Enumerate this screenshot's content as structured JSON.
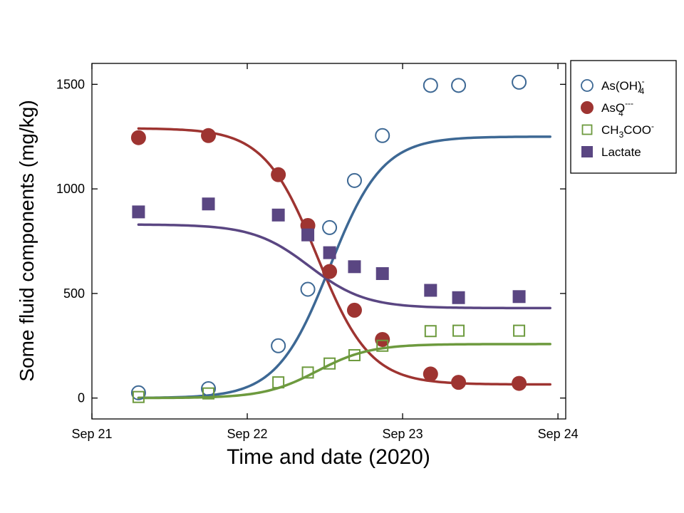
{
  "chart_data": {
    "type": "scatter",
    "title": "",
    "xlabel": "Time and date (2020)",
    "ylabel": "Some fluid components (mg/kg)",
    "xlim": [
      0,
      3.05
    ],
    "ylim": [
      -100,
      1600
    ],
    "x_ticks": [
      {
        "value": 0,
        "label": "Sep 21"
      },
      {
        "value": 1,
        "label": "Sep 22"
      },
      {
        "value": 2,
        "label": "Sep 23"
      },
      {
        "value": 3,
        "label": "Sep 24"
      }
    ],
    "y_ticks": [
      {
        "value": 0,
        "label": "0"
      },
      {
        "value": 500,
        "label": "500"
      },
      {
        "value": 1000,
        "label": "1000"
      },
      {
        "value": 1500,
        "label": "1500"
      }
    ],
    "legend_position": "outside-top-right",
    "series": [
      {
        "name": "As(OH)4-",
        "legend": {
          "base": "As(OH)",
          "sub": "4",
          "sup": "-"
        },
        "color": "#3d6894",
        "marker": "open-circle",
        "x": [
          0.3,
          0.75,
          1.2,
          1.39,
          1.53,
          1.69,
          1.87,
          2.18,
          2.36,
          2.75
        ],
        "y": [
          25,
          45,
          250,
          520,
          815,
          1040,
          1255,
          1495,
          1495,
          1510
        ],
        "fit": {
          "kind": "sigmoid",
          "low": 0,
          "high": 1250,
          "mid": 1.53,
          "width": 0.17,
          "x_start": 0.3,
          "x_end": 2.95
        }
      },
      {
        "name": "AsO4---",
        "legend": {
          "base": "AsO",
          "sub": "4",
          "sup": "---"
        },
        "color": "#9e3431",
        "marker": "filled-circle",
        "x": [
          0.3,
          0.75,
          1.2,
          1.39,
          1.53,
          1.69,
          1.87,
          2.18,
          2.36,
          2.75
        ],
        "y": [
          1245,
          1255,
          1068,
          825,
          605,
          420,
          280,
          115,
          75,
          70
        ],
        "fit": {
          "kind": "sigmoid",
          "low": 65,
          "high": 1290,
          "mid": 1.45,
          "width": 0.17,
          "x_start": 0.3,
          "x_end": 2.95
        }
      },
      {
        "name": "CH3COO-",
        "legend": {
          "base": "CH",
          "sub": "3",
          "tail": "COO",
          "sup": "-"
        },
        "color": "#6d9a3e",
        "marker": "open-square",
        "x": [
          0.3,
          0.75,
          1.2,
          1.39,
          1.53,
          1.69,
          1.87,
          2.18,
          2.36,
          2.75
        ],
        "y": [
          5,
          22,
          75,
          122,
          165,
          205,
          250,
          320,
          322,
          322
        ],
        "fit": {
          "kind": "sigmoid",
          "low": 0,
          "high": 258,
          "mid": 1.45,
          "width": 0.17,
          "x_start": 0.3,
          "x_end": 2.95
        }
      },
      {
        "name": "Lactate",
        "legend": {
          "base": "Lactate"
        },
        "color": "#5a4682",
        "marker": "filled-square",
        "x": [
          0.3,
          0.75,
          1.2,
          1.39,
          1.53,
          1.69,
          1.87,
          2.18,
          2.36,
          2.75
        ],
        "y": [
          890,
          928,
          875,
          780,
          695,
          628,
          595,
          515,
          480,
          485
        ],
        "fit": {
          "kind": "sigmoid",
          "low": 430,
          "high": 830,
          "mid": 1.4,
          "width": 0.18,
          "x_start": 0.3,
          "x_end": 2.95
        }
      }
    ]
  }
}
